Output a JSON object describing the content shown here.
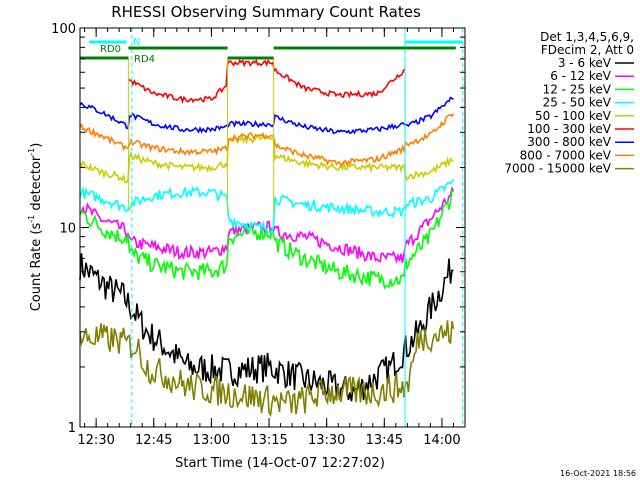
{
  "chart_data": {
    "type": "line",
    "title": "RHESSI Observing Summary Count Rates",
    "xlabel": "Start Time (14-Oct-07 12:27:02)",
    "ylabel_main": "Count Rate (s",
    "ylabel_sup1": "-1",
    "ylabel_mid": " detector",
    "ylabel_sup2": "-1",
    "ylabel_end": ")",
    "yscale": "log",
    "ylim": [
      1,
      100
    ],
    "xlim_minutes": [
      12.43,
      14.1
    ],
    "x_ticks": [
      "12:30",
      "12:45",
      "13:00",
      "13:15",
      "13:30",
      "13:45",
      "14:00"
    ],
    "y_ticks": [
      "1",
      "10",
      "100"
    ],
    "legend_header": [
      "Det 1,3,4,5,6,9,",
      "FDecim 2, Att 0"
    ],
    "timestamp": "16-Oct-2021 18:56",
    "annotations": {
      "night": "N",
      "rd0": "RD0",
      "rd4": "RD4"
    },
    "colors": {
      "3-6": "#000000",
      "6-12": "#ff00ff",
      "12-25": "#00ff00",
      "25-50": "#00ffff",
      "50-100": "#cccc00",
      "100-300": "#ff0000",
      "300-800": "#0000ff",
      "800-7000": "#ff8000",
      "7000-15000": "#808000"
    },
    "series": [
      {
        "name": "3 - 6 keV",
        "color": "#000000",
        "t": [
          12.43,
          12.55,
          12.62,
          12.72,
          12.9,
          13.08,
          13.25,
          13.42,
          13.62,
          13.78,
          13.9,
          14.05
        ],
        "v": [
          6.5,
          5,
          4.5,
          3,
          2,
          1.9,
          2,
          1.7,
          1.5,
          2,
          3,
          6.5
        ]
      },
      {
        "name": "6 - 12 keV",
        "color": "#ff00ff",
        "t": [
          12.43,
          12.52,
          12.6,
          12.64,
          12.64,
          12.75,
          12.87,
          13.0,
          13.07,
          13.07,
          13.2,
          13.27,
          13.27,
          13.4,
          13.55,
          13.72,
          13.84,
          13.84,
          13.95,
          14.05
        ],
        "v": [
          13,
          11,
          10,
          9.5,
          8.5,
          8,
          7.5,
          7.5,
          8,
          9.5,
          10,
          10,
          9.5,
          9,
          8,
          7,
          7,
          8,
          11,
          15
        ]
      },
      {
        "name": "12 - 25 keV",
        "color": "#00ff00",
        "t": [
          12.43,
          12.52,
          12.6,
          12.64,
          12.64,
          12.75,
          12.87,
          13.0,
          13.07,
          13.07,
          13.2,
          13.27,
          13.27,
          13.4,
          13.55,
          13.72,
          13.84,
          13.84,
          13.95,
          14.05
        ],
        "v": [
          12,
          10,
          9,
          9,
          7.5,
          6.5,
          6,
          6,
          6.5,
          9,
          9.5,
          9.5,
          8.5,
          7,
          6,
          5.5,
          5.5,
          6.5,
          9,
          15
        ]
      },
      {
        "name": "25 - 50 keV",
        "color": "#00ffff",
        "t": [
          12.43,
          12.52,
          12.6,
          12.64,
          12.64,
          12.75,
          12.87,
          13.0,
          13.07,
          13.07,
          13.2,
          13.27,
          13.27,
          13.4,
          13.55,
          13.72,
          13.84,
          13.84,
          13.95,
          14.05
        ],
        "v": [
          15,
          14,
          13,
          12.5,
          13,
          14.5,
          15,
          15,
          14,
          11,
          10,
          10,
          14,
          13,
          12.5,
          12,
          12,
          13,
          14,
          17
        ]
      },
      {
        "name": "50 - 100 keV",
        "color": "#cccc00",
        "t": [
          12.43,
          12.52,
          12.6,
          12.64,
          12.64,
          12.75,
          12.87,
          13.0,
          13.07,
          13.07,
          13.2,
          13.27,
          13.27,
          13.4,
          13.55,
          13.72,
          13.84,
          13.84,
          13.95,
          14.05
        ],
        "v": [
          21,
          19,
          18,
          17,
          23,
          21,
          20,
          20,
          21,
          27,
          28,
          28,
          23,
          21,
          20,
          20,
          20,
          18,
          19,
          22
        ]
      },
      {
        "name": "100 - 300 keV",
        "color": "#ff0000",
        "t": [
          12.64,
          12.75,
          12.87,
          13.0,
          13.07,
          13.07,
          13.2,
          13.27,
          13.27,
          13.4,
          13.55,
          13.72,
          13.84
        ],
        "v": [
          55,
          47,
          44,
          44,
          52,
          67,
          67,
          67,
          62,
          50,
          46,
          47,
          62
        ]
      },
      {
        "name": "300 - 800 keV",
        "color": "#0000ff",
        "t": [
          12.43,
          12.52,
          12.6,
          12.64,
          12.64,
          12.75,
          12.87,
          13.0,
          13.07,
          13.07,
          13.2,
          13.27,
          13.27,
          13.4,
          13.55,
          13.72,
          13.84,
          13.84,
          13.95,
          14.05
        ],
        "v": [
          42,
          38,
          34,
          32,
          37,
          33,
          31,
          31,
          32,
          33,
          33,
          33,
          36,
          32,
          30,
          31,
          33,
          32,
          36,
          45
        ]
      },
      {
        "name": "800 - 7000 keV",
        "color": "#ff8000",
        "t": [
          12.43,
          12.52,
          12.6,
          12.64,
          12.64,
          12.75,
          12.87,
          13.0,
          13.07,
          13.07,
          13.2,
          13.27,
          13.27,
          13.4,
          13.55,
          13.72,
          13.84,
          13.84,
          13.95,
          14.05
        ],
        "v": [
          32,
          29,
          26,
          25,
          27,
          25,
          24,
          24,
          25,
          28,
          29,
          29,
          26,
          23,
          21,
          22,
          25,
          26,
          29,
          38
        ]
      },
      {
        "name": "7000 - 15000 keV",
        "color": "#808000",
        "t": [
          12.43,
          12.52,
          12.6,
          12.68,
          12.72,
          12.9,
          13.05,
          13.2,
          13.35,
          13.5,
          13.7,
          13.85,
          13.9,
          14.05
        ],
        "v": [
          2.8,
          2.8,
          2.7,
          2.5,
          2,
          1.6,
          1.5,
          1.4,
          1.3,
          1.5,
          1.5,
          1.6,
          2.8,
          3
        ]
      }
    ]
  }
}
